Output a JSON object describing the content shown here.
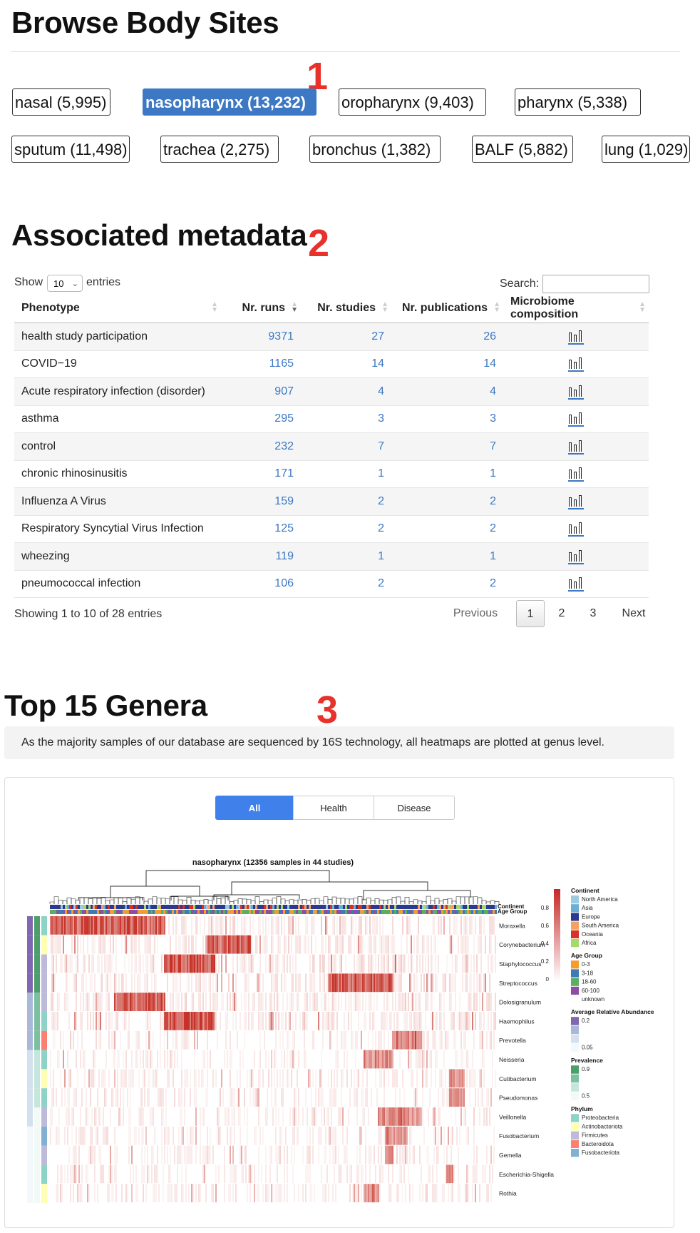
{
  "browse": {
    "title": "Browse Body Sites",
    "marker": "1",
    "sites": [
      {
        "label": "nasal (5,995)"
      },
      {
        "label": "nasopharynx (13,232)",
        "active": true
      },
      {
        "label": "oropharynx (9,403)"
      },
      {
        "label": "pharynx (5,338)"
      },
      {
        "label": "sputum (11,498)"
      },
      {
        "label": "trachea (2,275)"
      },
      {
        "label": "bronchus (1,382)"
      },
      {
        "label": "BALF (5,882)"
      },
      {
        "label": "lung (1,029)"
      }
    ]
  },
  "metadata": {
    "title": "Associated metadata",
    "marker": "2",
    "show_label": "Show",
    "entries_value": "10",
    "entries_label": "entries",
    "search_label": "Search:",
    "search_value": "",
    "columns": [
      "Phenotype",
      "Nr. runs",
      "Nr. studies",
      "Nr. publications",
      "Microbiome composition"
    ],
    "rows": [
      {
        "phenotype": "health study participation",
        "runs": "9371",
        "studies": "27",
        "pubs": "26"
      },
      {
        "phenotype": "COVID−19",
        "runs": "1165",
        "studies": "14",
        "pubs": "14"
      },
      {
        "phenotype": "Acute respiratory infection (disorder)",
        "runs": "907",
        "studies": "4",
        "pubs": "4"
      },
      {
        "phenotype": "asthma",
        "runs": "295",
        "studies": "3",
        "pubs": "3"
      },
      {
        "phenotype": "control",
        "runs": "232",
        "studies": "7",
        "pubs": "7"
      },
      {
        "phenotype": "chronic rhinosinusitis",
        "runs": "171",
        "studies": "1",
        "pubs": "1"
      },
      {
        "phenotype": "Influenza A Virus",
        "runs": "159",
        "studies": "2",
        "pubs": "2"
      },
      {
        "phenotype": "Respiratory Syncytial Virus Infection",
        "runs": "125",
        "studies": "2",
        "pubs": "2"
      },
      {
        "phenotype": "wheezing",
        "runs": "119",
        "studies": "1",
        "pubs": "1"
      },
      {
        "phenotype": "pneumococcal infection",
        "runs": "106",
        "studies": "2",
        "pubs": "2"
      }
    ],
    "info": "Showing 1 to 10 of 28 entries",
    "pagination": {
      "previous": "Previous",
      "pages": [
        "1",
        "2",
        "3"
      ],
      "current": "1",
      "next": "Next"
    }
  },
  "genera": {
    "title": "Top 15 Genera",
    "marker": "3",
    "note": "As the majority samples of our database are sequenced by 16S technology, all heatmaps are plotted at genus level.",
    "tabs": [
      {
        "label": "All",
        "active": true
      },
      {
        "label": "Health"
      },
      {
        "label": "Disease"
      }
    ]
  },
  "chart_data": {
    "type": "heatmap",
    "title": "nasopharynx (12356 samples in 44 studies)",
    "top_tracks": [
      "Continent",
      "Age Group"
    ],
    "rows": [
      "Moraxella",
      "Corynebacterium",
      "Staphylococcus",
      "Streptococcus",
      "Dolosigranulum",
      "Haemophilus",
      "Prevotella",
      "Neisseria",
      "Cutibacterium",
      "Pseudomonas",
      "Veillonella",
      "Fusobacterium",
      "Gemella",
      "Escherichia-Shigella",
      "Rothia"
    ],
    "color_scale": {
      "ticks": [
        "0.8",
        "0.6",
        "0.4",
        "0.2",
        "0"
      ],
      "low": "#ffffff",
      "high": "#c62828"
    },
    "legends": [
      {
        "title": "Continent",
        "items": [
          {
            "label": "North America",
            "color": "#9ecae1"
          },
          {
            "label": "Asia",
            "color": "#6baed6"
          },
          {
            "label": "Europe",
            "color": "#2b3a8f"
          },
          {
            "label": "South America",
            "color": "#f4a261"
          },
          {
            "label": "Oceania",
            "color": "#d73027"
          },
          {
            "label": "Africa",
            "color": "#a6d96a"
          }
        ]
      },
      {
        "title": "Age Group",
        "items": [
          {
            "label": "0-3",
            "color": "#f39c33"
          },
          {
            "label": "3-18",
            "color": "#3d7ab8"
          },
          {
            "label": "18-60",
            "color": "#5aae61"
          },
          {
            "label": "60-100",
            "color": "#8e4fa0"
          },
          {
            "label": "unknown",
            "color": "#ffffff"
          }
        ]
      },
      {
        "title": "Average Relative Abundance",
        "items": [
          {
            "label": "0.2",
            "color": "#8068b0"
          },
          {
            "label": "",
            "color": "#a9b7d8"
          },
          {
            "label": "",
            "color": "#d3e1ef"
          },
          {
            "label": "0.05",
            "color": "#f2f8fb"
          }
        ]
      },
      {
        "title": "Prevalence",
        "items": [
          {
            "label": "0.9",
            "color": "#4c9e6a"
          },
          {
            "label": "",
            "color": "#7cc0a0"
          },
          {
            "label": "",
            "color": "#c5e6dc"
          },
          {
            "label": "0.5",
            "color": "#f2faf8"
          }
        ]
      },
      {
        "title": "Phylum",
        "items": [
          {
            "label": "Proteobacteria",
            "color": "#8dd3c7"
          },
          {
            "label": "Actinobacteriota",
            "color": "#ffffb3"
          },
          {
            "label": "Firmicutes",
            "color": "#bebada"
          },
          {
            "label": "Bacteroidota",
            "color": "#fb8072"
          },
          {
            "label": "Fusobacteriota",
            "color": "#80b1d3"
          }
        ]
      }
    ]
  }
}
